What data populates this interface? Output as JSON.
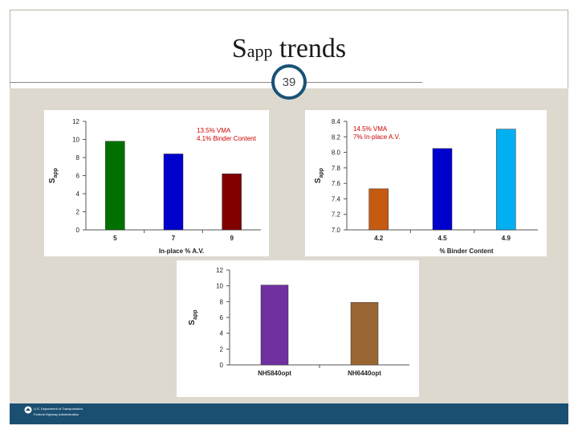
{
  "slide": {
    "title_main": "S",
    "title_sub": "app",
    "title_rest": " trends",
    "page_number": "39"
  },
  "footer": {
    "line1": "U.S. Department of Transportation",
    "line2": "Federal Highway Administration"
  },
  "chart_data": [
    {
      "type": "bar",
      "categories": [
        "5",
        "7",
        "9"
      ],
      "values": [
        9.8,
        8.4,
        6.2
      ],
      "colors": [
        "#007000",
        "#0000cc",
        "#800000"
      ],
      "ylabel": "S",
      "ylabel_sub": "app",
      "xlabel": "In-place % A.V.",
      "ylim": [
        0,
        12
      ],
      "yticks": [
        "0",
        "2",
        "4",
        "6",
        "8",
        "10",
        "12"
      ],
      "annotation": [
        "13.5% VMA",
        "4.1% Binder Content"
      ],
      "annotation_color": "#cc0000",
      "grid": false
    },
    {
      "type": "bar",
      "categories": [
        "4.2",
        "4.5",
        "4.9"
      ],
      "values": [
        7.53,
        8.05,
        8.3
      ],
      "colors": [
        "#c55a11",
        "#0000cc",
        "#00b0f0"
      ],
      "ylabel": "S",
      "ylabel_sub": "app",
      "xlabel": "% Binder Content",
      "ylim": [
        7.0,
        8.4
      ],
      "yticks": [
        "7.0",
        "7.2",
        "7.4",
        "7.6",
        "7.8",
        "8.0",
        "8.2",
        "8.4"
      ],
      "annotation": [
        "14.5% VMA",
        "7% In-place A.V."
      ],
      "annotation_color": "#cc0000",
      "grid": false
    },
    {
      "type": "bar",
      "categories": [
        "NH5840opt",
        "NH6440opt"
      ],
      "values": [
        10.1,
        7.9
      ],
      "colors": [
        "#7030a0",
        "#996633"
      ],
      "ylabel": "S",
      "ylabel_sub": "app",
      "xlabel": "",
      "ylim": [
        0,
        12
      ],
      "yticks": [
        "0",
        "2",
        "4",
        "6",
        "8",
        "10",
        "12"
      ],
      "annotation": [],
      "grid": false
    }
  ]
}
